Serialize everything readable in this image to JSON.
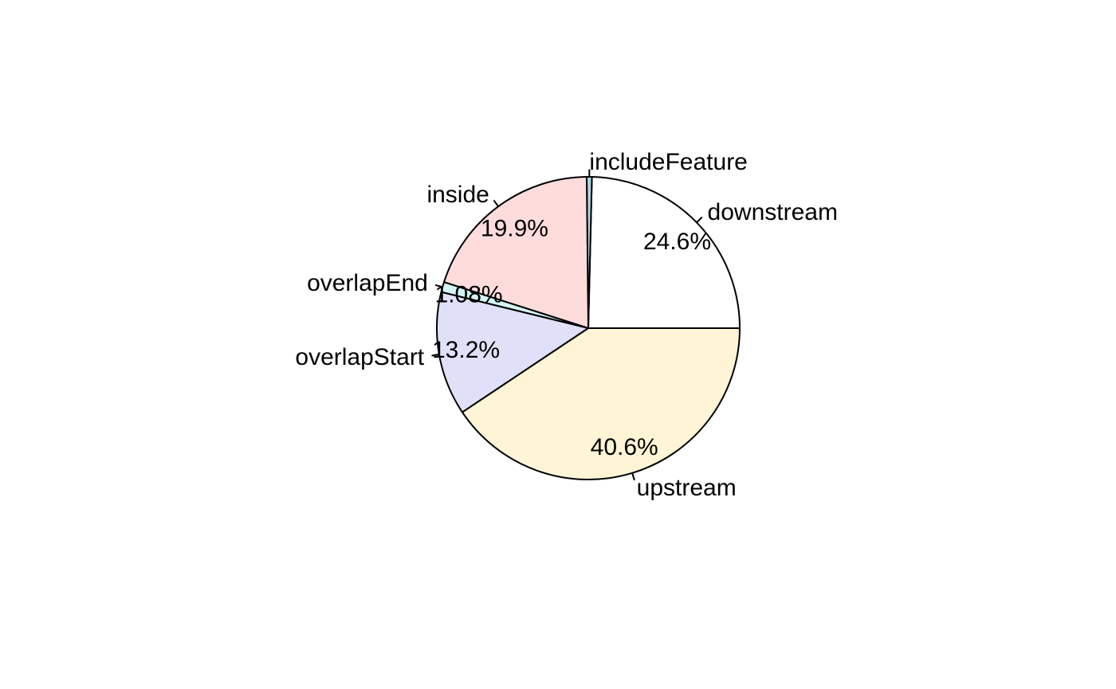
{
  "chart_data": {
    "type": "pie",
    "start": "counterclockwise from 3 o'clock",
    "slices": [
      {
        "name": "downstream",
        "value": 24.6,
        "pct_label": "24.6%",
        "color": "#ffffff"
      },
      {
        "name": "includeFeature",
        "value": 0.55,
        "pct_label": "",
        "color": "#add8e6"
      },
      {
        "name": "inside",
        "value": 19.9,
        "pct_label": "19.9%",
        "color": "#ffdcdc"
      },
      {
        "name": "overlapEnd",
        "value": 1.08,
        "pct_label": "1.08%",
        "color": "#d4f5f5"
      },
      {
        "name": "overlapStart",
        "value": 13.2,
        "pct_label": "13.2%",
        "color": "#e0e0f8"
      },
      {
        "name": "upstream",
        "value": 40.6,
        "pct_label": "40.6%",
        "color": "#fff5d6"
      }
    ]
  }
}
